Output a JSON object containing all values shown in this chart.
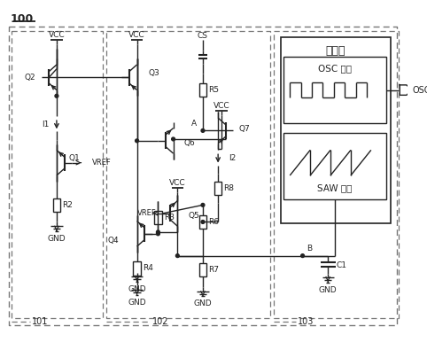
{
  "bg_color": "#ffffff",
  "line_color": "#222222",
  "dashed_color": "#555555",
  "text_color": "#222222",
  "figsize": [
    4.82,
    3.95
  ],
  "dpi": 100,
  "labels": {
    "main_title": "100",
    "block101": "101",
    "block102": "102",
    "block103": "103",
    "oscillator_title": "振荡器",
    "osc_module": "OSC 模块",
    "saw_module": "SAW 模块",
    "osc_out": "OSC"
  }
}
